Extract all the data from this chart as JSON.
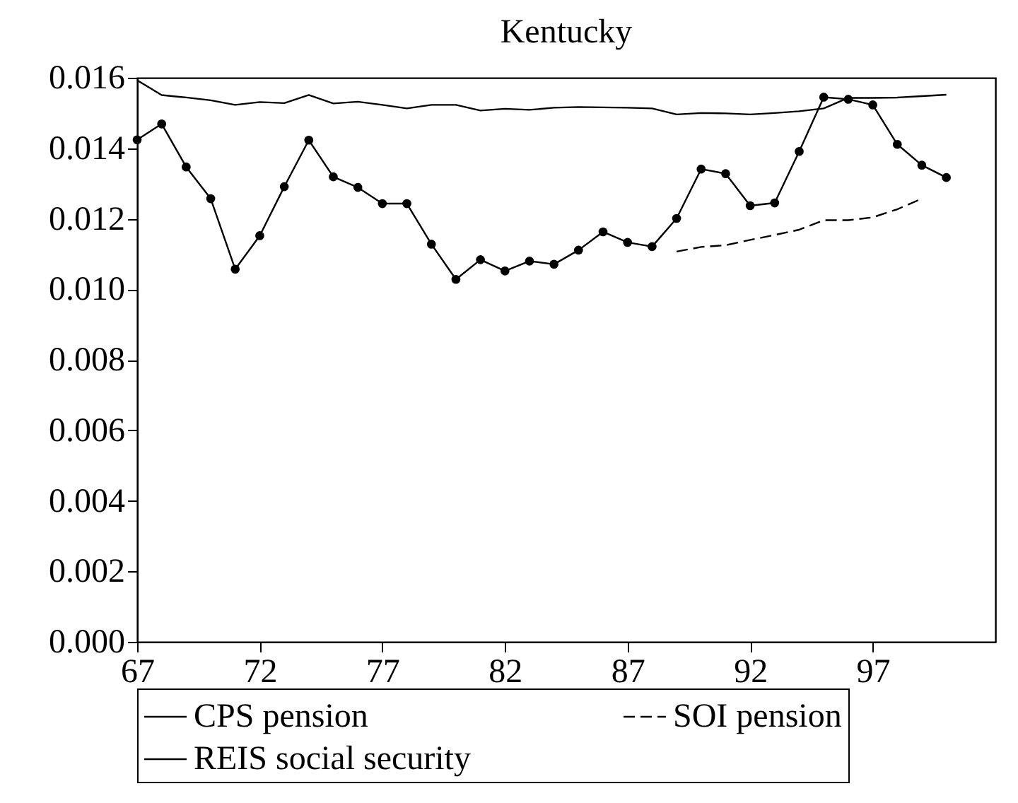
{
  "chart_data": {
    "type": "line",
    "title": "Kentucky",
    "x": [
      67,
      68,
      69,
      70,
      71,
      72,
      73,
      74,
      75,
      76,
      77,
      78,
      79,
      80,
      81,
      82,
      83,
      84,
      85,
      86,
      87,
      88,
      89,
      90,
      91,
      92,
      93,
      94,
      95,
      96,
      97,
      98,
      99,
      100
    ],
    "series": [
      {
        "name": "CPS pension",
        "color": "#000000",
        "marker": "circle",
        "line_style": "solid",
        "values": [
          0.01424,
          0.01469,
          0.01347,
          0.01257,
          0.01057,
          0.01152,
          0.01291,
          0.01423,
          0.01319,
          0.01289,
          0.01243,
          0.01243,
          0.01128,
          0.01028,
          0.01084,
          0.01052,
          0.0108,
          0.01071,
          0.01111,
          0.01163,
          0.01133,
          0.01121,
          0.01201,
          0.01341,
          0.01328,
          0.01237,
          0.01245,
          0.01391,
          0.01545,
          0.01539,
          0.01523,
          0.01411,
          0.01352,
          0.01317
        ]
      },
      {
        "name": "SOI pension",
        "color": "#000000",
        "marker": "none",
        "line_style": "dashed",
        "x": [
          89,
          90,
          91,
          92,
          93,
          94,
          95,
          96,
          97,
          98,
          99
        ],
        "values": [
          0.01107,
          0.0112,
          0.01125,
          0.0114,
          0.01154,
          0.01169,
          0.01196,
          0.01196,
          0.01204,
          0.01227,
          0.01257
        ]
      },
      {
        "name": "REIS social security",
        "color": "#000000",
        "marker": "none",
        "line_style": "solid",
        "values": [
          0.01593,
          0.01551,
          0.01544,
          0.01536,
          0.01523,
          0.01531,
          0.01528,
          0.01551,
          0.01527,
          0.01532,
          0.01523,
          0.01513,
          0.01523,
          0.01523,
          0.01507,
          0.01512,
          0.01509,
          0.01515,
          0.01517,
          0.01516,
          0.01515,
          0.01513,
          0.01496,
          0.015,
          0.01499,
          0.01496,
          0.015,
          0.01505,
          0.01513,
          0.01543,
          0.01543,
          0.01544,
          0.01548,
          0.01552
        ]
      }
    ],
    "xlim": [
      67,
      102
    ],
    "xticks": [
      67,
      72,
      77,
      82,
      87,
      92,
      97
    ],
    "ylim": [
      0,
      0.016
    ],
    "yticks": [
      {
        "value": 0,
        "label": "0.000"
      },
      0.002,
      0.004,
      0.006,
      0.008,
      {
        "value": 0.01,
        "label": "0.010"
      },
      0.012,
      0.014,
      0.016
    ],
    "grid": false,
    "legend": "bottom"
  }
}
